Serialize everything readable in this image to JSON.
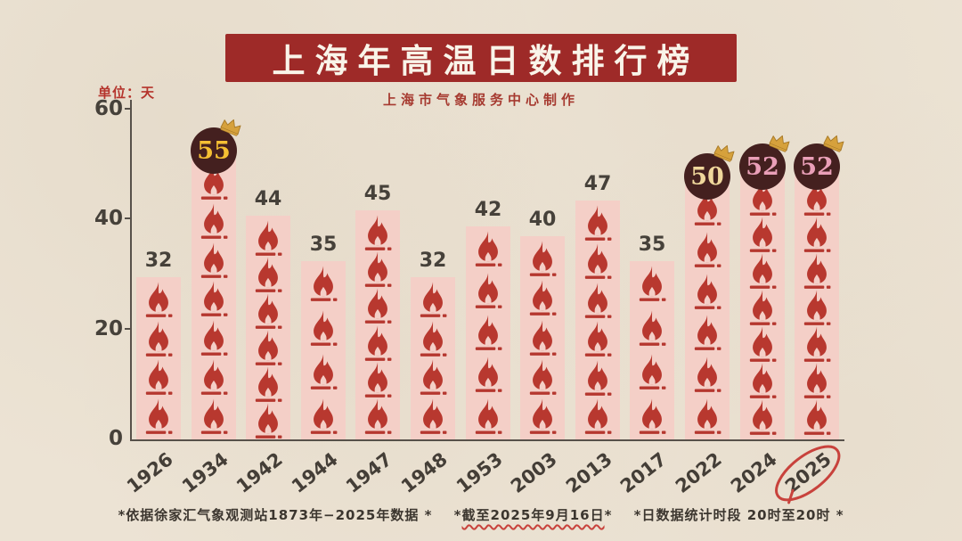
{
  "header": {
    "title": "上海年高温日数排行榜",
    "subtitle": "上海市气象服务中心制作"
  },
  "axis": {
    "unit_label": "单位：天",
    "y_ticks": [
      60,
      40,
      20,
      0
    ],
    "y_max": 60
  },
  "chart_data": {
    "type": "bar",
    "title": "上海年高温日数排行榜",
    "ylabel": "单位：天",
    "ylim": [
      0,
      60
    ],
    "grid": false,
    "categories": [
      "1926",
      "1934",
      "1942",
      "1944",
      "1947",
      "1948",
      "1953",
      "2003",
      "2013",
      "2017",
      "2022",
      "2024",
      "2025"
    ],
    "values": [
      32,
      55,
      44,
      35,
      45,
      32,
      42,
      40,
      47,
      35,
      50,
      52,
      52
    ],
    "flame_counts": [
      4,
      7,
      6,
      4,
      6,
      4,
      5,
      5,
      6,
      4,
      6,
      7,
      7
    ],
    "badges": [
      {
        "year": "1934",
        "value": "55",
        "text_color": "#f5c033"
      },
      {
        "year": "2022",
        "value": "50",
        "text_color": "#f0d79c"
      },
      {
        "year": "2024",
        "value": "52",
        "text_color": "#ea9fb8"
      },
      {
        "year": "2025",
        "value": "52",
        "text_color": "#ea9fb8"
      }
    ],
    "highlighted_year": "2025"
  },
  "footer": {
    "note1": "*依据徐家汇气象观测站1873年−2025年数据 *",
    "note2_prefix": "*",
    "note2_underlined": "截至2025年9月16日",
    "note2_suffix": "*",
    "note3": "*日数据统计时段 20时至20时 *"
  },
  "colors": {
    "paper": "#ece3d4",
    "banner": "#9e2a28",
    "banner_text": "#f9f4e9",
    "subtitle_text": "#a63a30",
    "unit_text": "#b5342c",
    "axis_text": "#46413a",
    "axis_line": "#57514a",
    "bar_fill": "#f4cfc7",
    "flame": "#b8382f",
    "flame_base": "#b5372f",
    "badge_bg": "#44201f",
    "crown": "#d6a13c",
    "crown_edge": "#a87a28",
    "year_text": "#443e37",
    "footer_text": "#3c362f",
    "accent_red": "#c8423c"
  }
}
